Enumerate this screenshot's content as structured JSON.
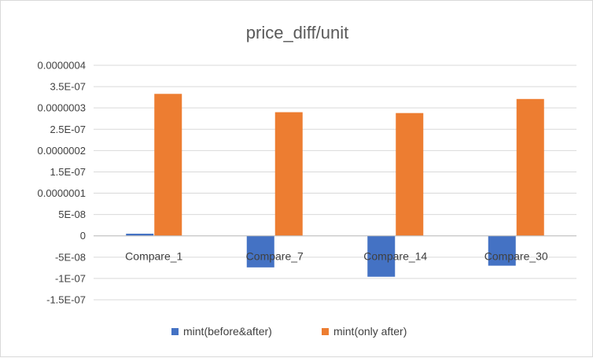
{
  "chart_data": {
    "type": "bar",
    "title": "price_diff/unit",
    "xlabel": "",
    "ylabel": "",
    "categories": [
      "Compare_1",
      "Compare_7",
      "Compare_14",
      "Compare_30"
    ],
    "series": [
      {
        "name": "mint(before&after)",
        "color": "#4472C4",
        "values": [
          5e-09,
          -7.4e-08,
          -9.6e-08,
          -7e-08
        ]
      },
      {
        "name": "mint(only after)",
        "color": "#ED7D31",
        "values": [
          3.33e-07,
          2.9e-07,
          2.88e-07,
          3.21e-07
        ]
      }
    ],
    "ylim": [
      -1.5e-07,
      4e-07
    ],
    "yticks": [
      {
        "value": 4e-07,
        "label": "0.0000004"
      },
      {
        "value": 3.5e-07,
        "label": "3.5E-07"
      },
      {
        "value": 3e-07,
        "label": "0.0000003"
      },
      {
        "value": 2.5e-07,
        "label": "2.5E-07"
      },
      {
        "value": 2e-07,
        "label": "0.0000002"
      },
      {
        "value": 1.5e-07,
        "label": "1.5E-07"
      },
      {
        "value": 1e-07,
        "label": "0.0000001"
      },
      {
        "value": 5e-08,
        "label": "5E-08"
      },
      {
        "value": 0,
        "label": "0"
      },
      {
        "value": -5e-08,
        "label": "-5E-08"
      },
      {
        "value": -1e-07,
        "label": "-1E-07"
      },
      {
        "value": -1.5e-07,
        "label": "-1.5E-07"
      }
    ],
    "grid": true,
    "legend_position": "bottom"
  }
}
